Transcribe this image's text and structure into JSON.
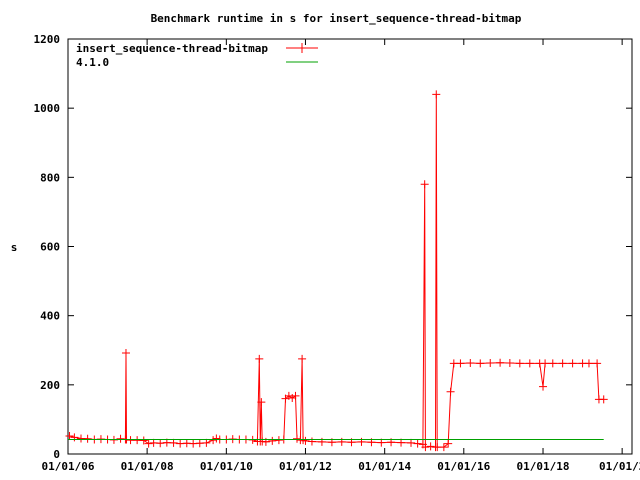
{
  "chart_data": {
    "type": "line",
    "title": "Benchmark runtime in s for insert_sequence-thread-bitmap",
    "xlabel": "",
    "ylabel": "s",
    "xlim": [
      "2006-01-01",
      "2020-04-01"
    ],
    "ylim": [
      0,
      1200
    ],
    "x_ticks": [
      "01/01/06",
      "01/01/08",
      "01/01/10",
      "01/01/12",
      "01/01/14",
      "01/01/16",
      "01/01/18",
      "01/01/2"
    ],
    "y_ticks": [
      "0",
      "200",
      "400",
      "600",
      "800",
      "1000",
      "1200"
    ],
    "grid": false,
    "legend_position": "top-left",
    "series": [
      {
        "name": "insert_sequence-thread-bitmap",
        "color": "#ff0000",
        "marker": "plus",
        "points": [
          [
            "2006-01-15",
            52
          ],
          [
            "2006-03-01",
            48
          ],
          [
            "2006-05-01",
            45
          ],
          [
            "2006-07-01",
            44
          ],
          [
            "2006-09-01",
            42
          ],
          [
            "2006-11-01",
            43
          ],
          [
            "2007-01-01",
            42
          ],
          [
            "2007-03-01",
            41
          ],
          [
            "2007-05-01",
            44
          ],
          [
            "2007-06-15",
            42
          ],
          [
            "2007-06-20",
            292
          ],
          [
            "2007-06-25",
            42
          ],
          [
            "2007-08-01",
            40
          ],
          [
            "2007-10-01",
            40
          ],
          [
            "2007-12-01",
            39
          ],
          [
            "2008-01-15",
            30
          ],
          [
            "2008-03-01",
            32
          ],
          [
            "2008-05-01",
            31
          ],
          [
            "2008-07-01",
            33
          ],
          [
            "2008-09-01",
            32
          ],
          [
            "2008-11-01",
            30
          ],
          [
            "2009-01-01",
            31
          ],
          [
            "2009-03-01",
            30
          ],
          [
            "2009-05-01",
            31
          ],
          [
            "2009-07-01",
            32
          ],
          [
            "2009-09-01",
            40
          ],
          [
            "2009-10-01",
            45
          ],
          [
            "2009-11-01",
            42
          ],
          [
            "2010-01-01",
            42
          ],
          [
            "2010-03-01",
            43
          ],
          [
            "2010-05-01",
            42
          ],
          [
            "2010-07-01",
            42
          ],
          [
            "2010-09-01",
            41
          ],
          [
            "2010-10-15",
            36
          ],
          [
            "2010-11-01",
            275
          ],
          [
            "2010-11-10",
            36
          ],
          [
            "2010-11-20",
            150
          ],
          [
            "2010-11-28",
            36
          ],
          [
            "2011-01-01",
            35
          ],
          [
            "2011-03-01",
            38
          ],
          [
            "2011-05-01",
            40
          ],
          [
            "2011-06-15",
            42
          ],
          [
            "2011-07-01",
            160
          ],
          [
            "2011-08-01",
            168
          ],
          [
            "2011-09-01",
            162
          ],
          [
            "2011-10-01",
            168
          ],
          [
            "2011-10-15",
            44
          ],
          [
            "2011-11-15",
            40
          ],
          [
            "2011-12-01",
            275
          ],
          [
            "2011-12-10",
            40
          ],
          [
            "2012-01-01",
            38
          ],
          [
            "2012-03-01",
            36
          ],
          [
            "2012-06-01",
            35
          ],
          [
            "2012-09-01",
            34
          ],
          [
            "2012-12-01",
            35
          ],
          [
            "2013-03-01",
            34
          ],
          [
            "2013-06-01",
            35
          ],
          [
            "2013-09-01",
            34
          ],
          [
            "2013-12-01",
            33
          ],
          [
            "2014-03-01",
            34
          ],
          [
            "2014-06-01",
            33
          ],
          [
            "2014-09-01",
            32
          ],
          [
            "2014-11-01",
            30
          ],
          [
            "2014-12-20",
            28
          ],
          [
            "2015-01-05",
            780
          ],
          [
            "2015-01-12",
            20
          ],
          [
            "2015-03-01",
            22
          ],
          [
            "2015-04-15",
            20
          ],
          [
            "2015-04-22",
            1040
          ],
          [
            "2015-05-01",
            20
          ],
          [
            "2015-07-01",
            20
          ],
          [
            "2015-08-10",
            30
          ],
          [
            "2015-09-01",
            180
          ],
          [
            "2015-10-01",
            262
          ],
          [
            "2015-12-01",
            262
          ],
          [
            "2016-03-01",
            263
          ],
          [
            "2016-06-01",
            262
          ],
          [
            "2016-09-01",
            263
          ],
          [
            "2016-12-01",
            264
          ],
          [
            "2017-03-01",
            263
          ],
          [
            "2017-06-01",
            262
          ],
          [
            "2017-09-01",
            262
          ],
          [
            "2017-12-01",
            262
          ],
          [
            "2018-01-01",
            195
          ],
          [
            "2018-01-20",
            262
          ],
          [
            "2018-04-01",
            262
          ],
          [
            "2018-07-01",
            262
          ],
          [
            "2018-10-01",
            262
          ],
          [
            "2019-01-01",
            262
          ],
          [
            "2019-03-01",
            262
          ],
          [
            "2019-05-15",
            262
          ],
          [
            "2019-06-01",
            158
          ],
          [
            "2019-07-15",
            158
          ]
        ]
      },
      {
        "name": "4.1.0",
        "color": "#00a000",
        "marker": "none",
        "points": [
          [
            "2006-01-01",
            42
          ],
          [
            "2019-07-15",
            42
          ]
        ]
      }
    ]
  }
}
